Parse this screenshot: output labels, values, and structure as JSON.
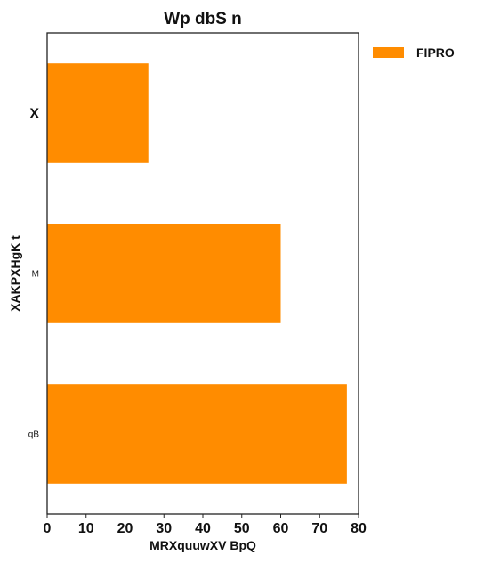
{
  "chart_data": {
    "type": "bar",
    "orientation": "horizontal",
    "title": "Wp dbS n",
    "xlabel": "MRXquuwXV BpQ",
    "ylabel": "XAKPXHgK  t",
    "categories": [
      "X",
      "M",
      "qB"
    ],
    "series": [
      {
        "name": "FIPRO",
        "color": "#ff8c00",
        "values": [
          26,
          60,
          77
        ]
      }
    ],
    "xlim": [
      0,
      80
    ],
    "xticks": [
      0,
      10,
      20,
      30,
      40,
      50,
      60,
      70,
      80
    ],
    "grid": false,
    "legend_position": "outside-top-right"
  }
}
